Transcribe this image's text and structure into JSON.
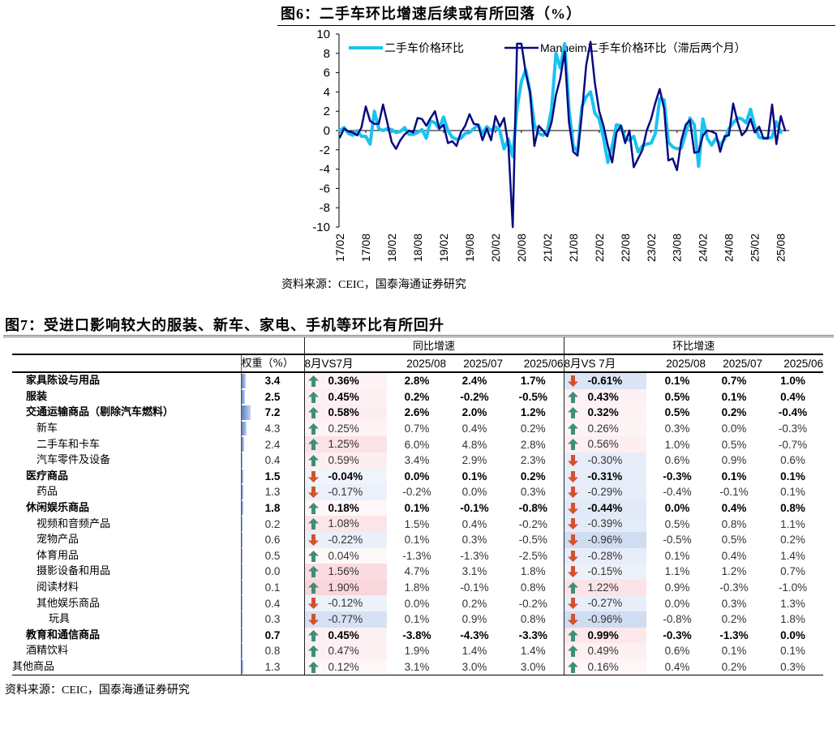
{
  "figure6": {
    "title": "图6：二手车环比增速后续或有所回落（%）",
    "source": "资料来源：CEIC，国泰海通证券研究"
  },
  "chart_data": {
    "type": "line",
    "ylim": [
      -10,
      10
    ],
    "yticks": [
      "10",
      "8",
      "6",
      "4",
      "2",
      "0",
      "-2",
      "-4",
      "-6",
      "-8",
      "-10"
    ],
    "xticks": [
      "17/02",
      "17/08",
      "18/02",
      "18/08",
      "19/02",
      "19/08",
      "20/02",
      "20/08",
      "21/02",
      "21/08",
      "22/02",
      "22/08",
      "23/02",
      "23/08",
      "24/02",
      "24/08",
      "25/02",
      "25/08"
    ],
    "x_start": "17/02",
    "legend_position": "top",
    "grid": false,
    "series": [
      {
        "name": "二手车价格环比",
        "color": "#19c3f0",
        "values": [
          0,
          0.3,
          -0.3,
          -0.5,
          0,
          -0.6,
          -0.6,
          -1.4,
          2.0,
          0.2,
          0,
          0.2,
          0.1,
          -0.2,
          -0.1,
          0.3,
          -0.4,
          -0.4,
          -0.2,
          0.1,
          -0.8,
          1.0,
          0.8,
          0.2,
          1.4,
          0,
          -0.7,
          -0.9,
          -0.8,
          -0.3,
          -0.2,
          0.2,
          0.6,
          -0.3,
          0.4,
          0,
          0.4,
          0,
          -1.9,
          -0.9,
          -2.7,
          2.3,
          5.1,
          6.3,
          4.0,
          0.6,
          -0.3,
          -0.5,
          -0.1,
          2.3,
          8.0,
          6.5,
          9.0,
          2.3,
          -1.6,
          -2.2,
          2.5,
          3.5,
          4.0,
          1.8,
          1.2,
          -0.8,
          -3.3,
          -1.6,
          0.6,
          0.5,
          -0.9,
          -1.0,
          -0.6,
          -2.2,
          -1.6,
          -1.4,
          -1.3,
          -0.3,
          3.3,
          3.2,
          -1.2,
          -1.7,
          -1.9,
          -1.8,
          -0.3,
          1.3,
          0.6,
          -3.7,
          1.2,
          -0.8,
          -1.5,
          -0.8,
          -1.5,
          -0.9,
          0.2,
          0.8,
          1.3,
          1.2,
          0.8,
          2.2,
          0.4,
          -0.7,
          -0.8,
          -0.8,
          -0.7,
          0.9,
          -0.2
        ]
      },
      {
        "name": "Manheim二手车价格环比（滞后两个月）",
        "color": "#0a0a80",
        "values": [
          -0.7,
          0.2,
          -0.1,
          -0.2,
          -0.5,
          0.3,
          2.5,
          1.0,
          0.7,
          0.7,
          2.7,
          0.8,
          -1.2,
          -1.9,
          -1.0,
          -0.4,
          0,
          -0.2,
          1.3,
          1.2,
          0.5,
          1.3,
          2.0,
          0.2,
          0.6,
          -1.3,
          -1.1,
          -1.6,
          -0.2,
          0.5,
          1.7,
          0.7,
          0.6,
          -1.0,
          0.2,
          -1.0,
          1.5,
          0.4,
          1.3,
          -1.6,
          -10,
          9.0,
          9.0,
          6.0,
          4.0,
          -1.6,
          0.5,
          0,
          -0.6,
          0.9,
          3.7,
          5.4,
          8.2,
          0.9,
          -2.2,
          -2.6,
          1.8,
          6.8,
          9.2,
          4.9,
          2.0,
          0.5,
          -1.6,
          -3.3,
          -0.2,
          0.5,
          -1.3,
          0,
          -3.8,
          -2.9,
          -2.0,
          0,
          1.2,
          2.9,
          4.3,
          2.3,
          -3.1,
          -2.9,
          -4.1,
          -1.0,
          0.6,
          1.1,
          -2.3,
          -2.2,
          -0.5,
          0,
          -0.1,
          -0.3,
          -2.2,
          -0.6,
          -0.5,
          2.8,
          0.9,
          -0.5,
          0,
          1.2,
          -0.2,
          0.4,
          -0.8,
          -0.8,
          2.7,
          -1.4,
          1.5,
          0
        ]
      }
    ]
  },
  "figure7": {
    "title": "图7：受进口影响较大的服装、新车、家电、手机等环比有所回升",
    "source": "资料来源：CEIC，国泰海通证券研究",
    "group_yoy": "同比增速",
    "group_mom": "环比增速",
    "headers": {
      "weight": "权重（%）",
      "yoy_chg": "8月VS7月",
      "yoy_m1": "2025/08",
      "yoy_m2": "2025/07",
      "yoy_m3": "2025/06",
      "mom_chg": "8月VS 7月",
      "mom_m1": "2025/08",
      "mom_m2": "2025/07",
      "mom_m3": "2025/06"
    },
    "colors": {
      "up": "#3d8f78",
      "down": "#d5512b",
      "pos_bg": "#f9d9de",
      "neg_bg": "#d9e3f4"
    },
    "rows": [
      {
        "name": "家具陈设与用品",
        "level": 0,
        "bold": true,
        "weight": "3.4",
        "yoy": [
          "0.36%",
          "2.8%",
          "2.4%",
          "1.7%"
        ],
        "mom": [
          "-0.61%",
          "0.1%",
          "0.7%",
          "1.0%"
        ]
      },
      {
        "name": "服装",
        "level": 0,
        "bold": true,
        "weight": "2.5",
        "yoy": [
          "0.45%",
          "0.2%",
          "-0.2%",
          "-0.5%"
        ],
        "mom": [
          "0.43%",
          "0.5%",
          "0.1%",
          "0.4%"
        ]
      },
      {
        "name": "交通运输商品（剔除汽车燃料）",
        "level": 0,
        "bold": true,
        "weight": "7.2",
        "yoy": [
          "0.58%",
          "2.6%",
          "2.0%",
          "1.2%"
        ],
        "mom": [
          "0.32%",
          "0.5%",
          "0.2%",
          "-0.4%"
        ]
      },
      {
        "name": "新车",
        "level": 1,
        "bold": false,
        "weight": "4.3",
        "yoy": [
          "0.25%",
          "0.7%",
          "0.4%",
          "0.2%"
        ],
        "mom": [
          "0.26%",
          "0.3%",
          "0.0%",
          "-0.3%"
        ]
      },
      {
        "name": "二手车和卡车",
        "level": 1,
        "bold": false,
        "weight": "2.4",
        "yoy": [
          "1.25%",
          "6.0%",
          "4.8%",
          "2.8%"
        ],
        "mom": [
          "0.56%",
          "1.0%",
          "0.5%",
          "-0.7%"
        ]
      },
      {
        "name": "汽车零件及设备",
        "level": 1,
        "bold": false,
        "weight": "0.4",
        "yoy": [
          "0.59%",
          "3.4%",
          "2.9%",
          "2.3%"
        ],
        "mom": [
          "-0.30%",
          "0.6%",
          "0.9%",
          "0.6%"
        ]
      },
      {
        "name": "医疗商品",
        "level": 0,
        "bold": true,
        "weight": "1.5",
        "yoy": [
          "-0.04%",
          "0.0%",
          "0.1%",
          "0.2%"
        ],
        "mom": [
          "-0.31%",
          "-0.3%",
          "0.1%",
          "0.1%"
        ]
      },
      {
        "name": "药品",
        "level": 1,
        "bold": false,
        "weight": "1.3",
        "yoy": [
          "-0.17%",
          "-0.2%",
          "0.0%",
          "0.3%"
        ],
        "mom": [
          "-0.29%",
          "-0.4%",
          "-0.1%",
          "0.1%"
        ]
      },
      {
        "name": "休闲娱乐商品",
        "level": 0,
        "bold": true,
        "weight": "1.8",
        "yoy": [
          "0.18%",
          "0.1%",
          "-0.1%",
          "-0.8%"
        ],
        "mom": [
          "-0.44%",
          "0.0%",
          "0.4%",
          "0.8%"
        ]
      },
      {
        "name": "视频和音频产品",
        "level": 1,
        "bold": false,
        "weight": "0.2",
        "yoy": [
          "1.08%",
          "1.5%",
          "0.4%",
          "-0.2%"
        ],
        "mom": [
          "-0.39%",
          "0.5%",
          "0.8%",
          "1.1%"
        ]
      },
      {
        "name": "宠物产品",
        "level": 1,
        "bold": false,
        "weight": "0.6",
        "yoy": [
          "-0.22%",
          "0.1%",
          "0.3%",
          "-0.5%"
        ],
        "mom": [
          "-0.96%",
          "-0.5%",
          "0.5%",
          "0.2%"
        ]
      },
      {
        "name": "体育用品",
        "level": 1,
        "bold": false,
        "weight": "0.5",
        "yoy": [
          "0.04%",
          "-1.3%",
          "-1.3%",
          "-2.5%"
        ],
        "mom": [
          "-0.28%",
          "0.1%",
          "0.4%",
          "1.4%"
        ]
      },
      {
        "name": "摄影设备和用品",
        "level": 1,
        "bold": false,
        "weight": "0.0",
        "yoy": [
          "1.56%",
          "4.7%",
          "3.1%",
          "1.8%"
        ],
        "mom": [
          "-0.15%",
          "1.1%",
          "1.2%",
          "0.7%"
        ]
      },
      {
        "name": "阅读材料",
        "level": 1,
        "bold": false,
        "weight": "0.1",
        "yoy": [
          "1.90%",
          "1.8%",
          "-0.1%",
          "0.8%"
        ],
        "mom": [
          "1.22%",
          "0.9%",
          "-0.3%",
          "-1.0%"
        ]
      },
      {
        "name": "其他娱乐商品",
        "level": 1,
        "bold": false,
        "weight": "0.4",
        "yoy": [
          "-0.12%",
          "0.0%",
          "0.2%",
          "-0.2%"
        ],
        "mom": [
          "-0.27%",
          "0.0%",
          "0.3%",
          "1.3%"
        ]
      },
      {
        "name": "玩具",
        "level": 2,
        "bold": false,
        "weight": "0.3",
        "yoy": [
          "-0.77%",
          "0.1%",
          "0.9%",
          "0.8%"
        ],
        "mom": [
          "-0.96%",
          "-0.8%",
          "0.2%",
          "1.8%"
        ]
      },
      {
        "name": "教育和通信商品",
        "level": 0,
        "bold": true,
        "weight": "0.7",
        "yoy": [
          "0.45%",
          "-3.8%",
          "-4.3%",
          "-3.3%"
        ],
        "mom": [
          "0.99%",
          "-0.3%",
          "-1.3%",
          "0.0%"
        ]
      },
      {
        "name": "酒精饮料",
        "level": 0,
        "bold": false,
        "weight": "0.8",
        "yoy": [
          "0.47%",
          "1.9%",
          "1.4%",
          "1.4%"
        ],
        "mom": [
          "0.49%",
          "0.6%",
          "0.1%",
          "0.1%"
        ]
      },
      {
        "name": "其他商品",
        "level": -1,
        "bold": false,
        "weight": "1.3",
        "yoy": [
          "0.12%",
          "3.1%",
          "3.0%",
          "3.0%"
        ],
        "mom": [
          "0.16%",
          "0.4%",
          "0.2%",
          "0.3%"
        ]
      }
    ]
  }
}
